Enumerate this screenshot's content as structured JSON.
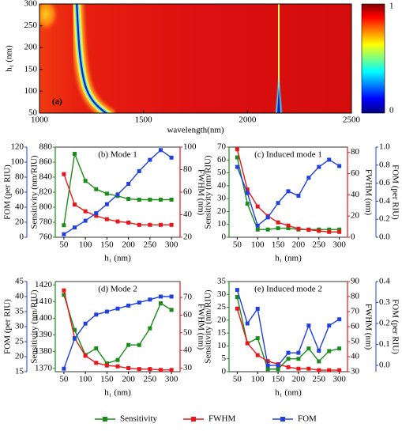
{
  "chart_data": [
    {
      "type": "heatmap",
      "annotation": "(a)",
      "xlabel": "wavelength(nm)",
      "ylabel": "h₁ (nm)",
      "xlim": [
        1000,
        2500
      ],
      "xticks": [
        1000,
        1500,
        2000,
        2500
      ],
      "ylim": [
        50,
        300
      ],
      "yticks": [
        50,
        100,
        150,
        200,
        250,
        300
      ],
      "colorbar_ticks": [
        0,
        1
      ]
    },
    {
      "type": "line",
      "title": "(b) Mode 1",
      "xlabel": "h₁ (nm)",
      "x": [
        50,
        75,
        100,
        125,
        150,
        175,
        200,
        225,
        250,
        275,
        300
      ],
      "xlim": [
        30,
        320
      ],
      "xticks": [
        50,
        100,
        150,
        200,
        250,
        300
      ],
      "ylabel": "Sensitivity (nm/RIU)",
      "ylim": [
        760,
        880
      ],
      "yticks": [
        760,
        780,
        800,
        820,
        840,
        860,
        880
      ],
      "y2label": "FWHM (nm)",
      "y2lim": [
        20,
        100
      ],
      "y2ticks": [
        20,
        40,
        60,
        80,
        100
      ],
      "y3label": "FOM (per RIU)",
      "y3lim": [
        0,
        120
      ],
      "y3ticks": [
        0,
        20,
        40,
        60,
        80,
        100,
        120
      ],
      "series": [
        {
          "name": "Sensitivity",
          "color": "#1a8c1a",
          "axis": "y",
          "values": [
            776,
            871,
            835,
            824,
            818,
            815,
            811,
            810,
            810,
            810,
            810
          ]
        },
        {
          "name": "FWHM",
          "color": "#e8161a",
          "axis": "y2",
          "values": [
            76,
            49,
            43,
            39,
            36,
            34,
            33,
            31,
            31,
            31,
            31
          ]
        },
        {
          "name": "FOM",
          "color": "#2040e0",
          "axis": "y3",
          "values": [
            4,
            13,
            22,
            32,
            44,
            57,
            71,
            88,
            103,
            116,
            106
          ]
        }
      ]
    },
    {
      "type": "line",
      "title": "(c) Induced mode 1",
      "xlabel": "h₁ (nm)",
      "x": [
        50,
        75,
        100,
        125,
        150,
        175,
        200,
        225,
        250,
        275,
        300
      ],
      "xlim": [
        30,
        320
      ],
      "xticks": [
        50,
        100,
        150,
        200,
        250,
        300
      ],
      "ylabel": "Sensitivity (nm/RIU)",
      "ylim": [
        0,
        70
      ],
      "yticks": [
        0,
        10,
        20,
        30,
        40,
        50,
        60,
        70
      ],
      "y2label": "FWHM (nm)",
      "y2lim": [
        0,
        85
      ],
      "y2ticks": [
        0,
        20,
        40,
        60,
        80
      ],
      "y3label": "FOM (per RIU)",
      "y3lim": [
        0,
        1
      ],
      "y3ticks": [
        {
          "value": 0,
          "label": "0.0"
        },
        {
          "value": 0.2,
          "label": "0.2"
        },
        {
          "value": 0.4,
          "label": "0.4"
        },
        {
          "value": 0.6,
          "label": "0.6"
        },
        {
          "value": 0.8,
          "label": "0.8"
        },
        {
          "value": 1,
          "label": "1.0"
        }
      ],
      "series": [
        {
          "name": "Sensitivity",
          "color": "#1a8c1a",
          "axis": "y",
          "values": [
            62,
            26,
            6,
            6,
            7,
            7,
            6,
            6,
            6,
            6,
            6
          ]
        },
        {
          "name": "FWHM",
          "color": "#e8161a",
          "axis": "y2",
          "values": [
            83,
            45,
            29,
            20,
            14,
            11,
            8,
            7,
            6,
            5,
            5
          ]
        },
        {
          "name": "FOM",
          "color": "#2040e0",
          "axis": "y3",
          "values": [
            0.78,
            0.49,
            0.13,
            0.22,
            0.38,
            0.51,
            0.46,
            0.66,
            0.78,
            0.86,
            0.79
          ]
        }
      ]
    },
    {
      "type": "line",
      "title": "(d) Mode 2",
      "xlabel": "h₁ (nm)",
      "x": [
        50,
        75,
        100,
        125,
        150,
        175,
        200,
        225,
        250,
        275,
        300
      ],
      "xlim": [
        30,
        320
      ],
      "xticks": [
        50,
        100,
        150,
        200,
        250,
        300
      ],
      "ylabel": "Sensitivity (nm/RIU)",
      "ylim": [
        1368,
        1422
      ],
      "yticks": [
        1370,
        1380,
        1390,
        1400,
        1410,
        1420
      ],
      "y2label": "FWHM (nm)",
      "y2lim": [
        28,
        79
      ],
      "y2ticks": [
        30,
        40,
        50,
        60,
        70
      ],
      "y3label": "FOM (per RIU)",
      "y3lim": [
        15,
        45
      ],
      "y3ticks": [
        15,
        20,
        25,
        30,
        35,
        40,
        45
      ],
      "series": [
        {
          "name": "Sensitivity",
          "color": "#1a8c1a",
          "axis": "y",
          "values": [
            1414,
            1393,
            1378,
            1382,
            1373,
            1375,
            1384,
            1384,
            1394,
            1409,
            1405
          ]
        },
        {
          "name": "FWHM",
          "color": "#e8161a",
          "axis": "y2",
          "values": [
            74,
            47,
            37,
            33,
            31.5,
            31,
            30,
            29.5,
            29.5,
            29,
            29
          ]
        },
        {
          "name": "FOM",
          "color": "#2040e0",
          "axis": "y3",
          "values": [
            16,
            26,
            31,
            34,
            35,
            36,
            37,
            38,
            39,
            40,
            40
          ]
        }
      ]
    },
    {
      "type": "line",
      "title": "(e) Induced mode 2",
      "xlabel": "h₁ (nm)",
      "x": [
        50,
        75,
        100,
        125,
        150,
        175,
        200,
        225,
        250,
        275,
        300
      ],
      "xlim": [
        30,
        320
      ],
      "xticks": [
        50,
        100,
        150,
        200,
        250,
        300
      ],
      "ylabel": "Sensitivity (nm/RIU)",
      "ylim": [
        0,
        35
      ],
      "yticks": [
        0,
        5,
        10,
        15,
        20,
        25,
        30,
        35
      ],
      "y2label": "FWHM (nm)",
      "y2lim": [
        30,
        90
      ],
      "y2ticks": [
        30,
        40,
        50,
        60,
        70,
        80,
        90
      ],
      "y3label": "FOM (per RIU)",
      "y3lim": [
        -0.03,
        0.4
      ],
      "y3ticks": [
        {
          "value": 0,
          "label": "0.0"
        },
        {
          "value": 0.1,
          "label": "0.1"
        },
        {
          "value": 0.2,
          "label": "0.2"
        },
        {
          "value": 0.3,
          "label": "0.3"
        },
        {
          "value": 0.4,
          "label": "0.4"
        }
      ],
      "series": [
        {
          "name": "Sensitivity",
          "color": "#1a8c1a",
          "axis": "y",
          "values": [
            29,
            11,
            13,
            1,
            1,
            5,
            5,
            9,
            4,
            8,
            9
          ]
        },
        {
          "name": "FWHM",
          "color": "#e8161a",
          "axis": "y2",
          "values": [
            72,
            49,
            41,
            37,
            35,
            33,
            32,
            32,
            31,
            31,
            31
          ]
        },
        {
          "name": "FOM",
          "color": "#2040e0",
          "axis": "y3",
          "values": [
            0.36,
            0.2,
            0.27,
            0,
            0,
            0.06,
            0.06,
            0.19,
            0.07,
            0.19,
            0.22
          ]
        }
      ]
    }
  ]
}
